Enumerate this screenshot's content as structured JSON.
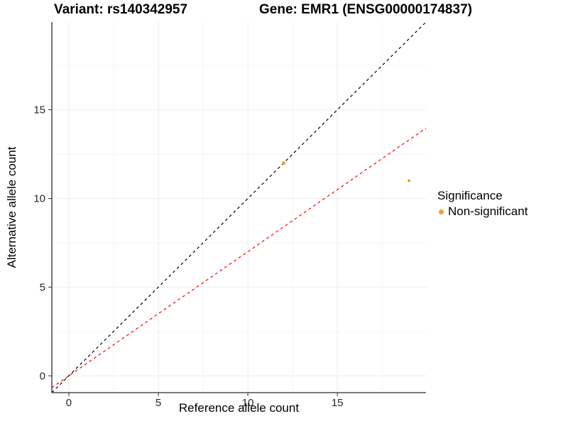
{
  "chart_data": {
    "type": "scatter",
    "title_variant": "Variant: rs140342957",
    "title_gene": "Gene: EMR1 (ENSG00000174837)",
    "xlabel": "Reference allele count",
    "ylabel": "Alternative allele count",
    "xlim": [
      -0.95,
      19.95
    ],
    "ylim": [
      -0.95,
      19.95
    ],
    "x_major_ticks": [
      0,
      5,
      10,
      15
    ],
    "y_major_ticks": [
      0,
      5,
      10,
      15
    ],
    "x_minor_ticks": [
      2.5,
      7.5,
      12.5,
      17.5
    ],
    "y_minor_ticks": [
      2.5,
      7.5,
      12.5,
      17.5
    ],
    "grid": true,
    "points": [
      {
        "x": 12,
        "y": 12,
        "r": 2.6,
        "series": "Non-significant"
      },
      {
        "x": 19,
        "y": 11,
        "r": 2.1,
        "series": "Non-significant"
      }
    ],
    "lines": [
      {
        "name": "identity-line",
        "slope": 1.0,
        "intercept": 0,
        "color": "#000000",
        "dash": "4 4"
      },
      {
        "name": "expected-ratio-line",
        "slope": 0.7,
        "intercept": 0,
        "color": "#FF0000",
        "dash": "4 4"
      }
    ],
    "legend": {
      "position": "right",
      "title": "Significance",
      "items": [
        {
          "label": "Non-significant",
          "color": "#F8A029"
        }
      ]
    },
    "colors": {
      "point_nonsignificant": "#F8A029",
      "grid_major": "#ECECEC",
      "grid_minor": "#F5F5F5",
      "axis_line": "#2b2b2b",
      "tick": "#333333",
      "tick_label": "#262626"
    }
  }
}
